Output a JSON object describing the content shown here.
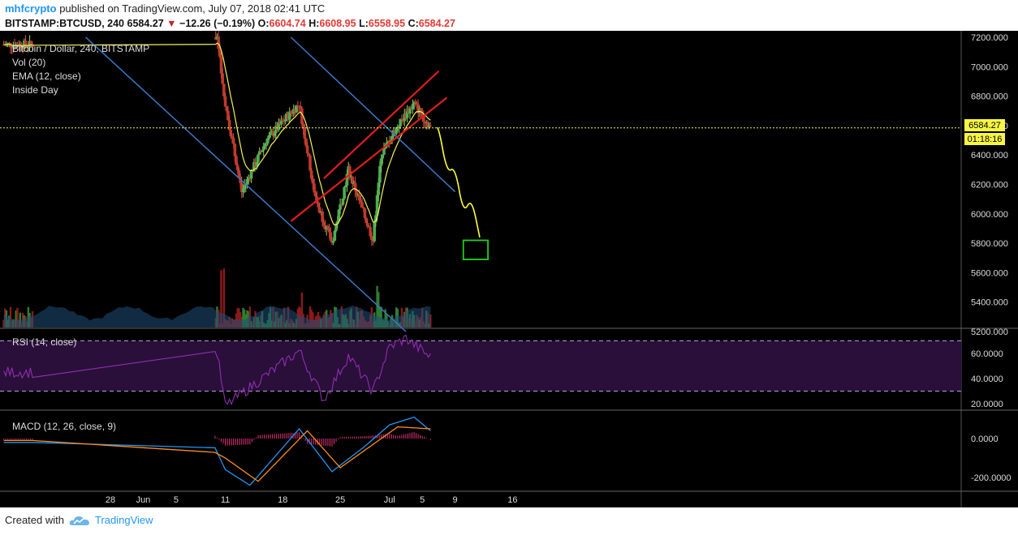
{
  "header": {
    "author": "mhfcrypto",
    "published_text": "published on TradingView.com, July 07, 2018 02:41 UTC",
    "symbol": "BITSTAMP:BTCUSD, 240",
    "last": "6584.27",
    "change": "−12.26 (−0.19%)",
    "o_label": "O:",
    "o_val": "6604.74",
    "h_label": "H:",
    "h_val": "6608.95",
    "l_label": "L:",
    "l_val": "6558.95",
    "c_label": "C:",
    "c_val": "6584.27"
  },
  "legend": {
    "title": "Bitcoin / Dollar, 240, BITSTAMP",
    "vol": "Vol (20)",
    "ema": "EMA (12, close)",
    "inside": "Inside Day",
    "rsi": "RSI (14, close)",
    "macd": "MACD (12, 26, close, 9)"
  },
  "price_tag": {
    "price": "6584.27",
    "countdown": "01:18:16"
  },
  "footer": {
    "created_with": "Created with",
    "brand": "TradingView"
  },
  "colors": {
    "up": "#4caf50",
    "down": "#c0392b",
    "trend": "#e01d1d",
    "channel": "#3a78c8",
    "ema": "#f3f35a",
    "projection": "#ffff33",
    "target": "#1fd11f",
    "rsi": "#8e2fb0",
    "macd": "#2196f3",
    "signal": "#ff8c1a",
    "hist": "#e5327a"
  },
  "chart_data": [
    {
      "type": "candlestick",
      "title": "Bitcoin / Dollar, 240, BITSTAMP",
      "ylim": [
        5150,
        7250
      ],
      "y_ticks": [
        "7200.000",
        "7000.000",
        "6800.000",
        "6600.000",
        "6400.000",
        "6200.000",
        "6000.000",
        "5800.000",
        "5600.000",
        "5400.000",
        "5200.000"
      ],
      "x_ticks": [
        "28",
        "Jun",
        "5",
        "11",
        "18",
        "25",
        "Jul",
        "5",
        "9",
        "16"
      ],
      "last_price": 6584.27,
      "key_points": [
        {
          "x": "May 28",
          "y": 7150
        },
        {
          "x": "Jun 10",
          "y": 7200
        },
        {
          "x": "Jun 11",
          "y": 6750
        },
        {
          "x": "Jun 13",
          "y": 6150
        },
        {
          "x": "Jun 16",
          "y": 6500
        },
        {
          "x": "Jun 20",
          "y": 6750
        },
        {
          "x": "Jun 22",
          "y": 6100
        },
        {
          "x": "Jun 24",
          "y": 5800
        },
        {
          "x": "Jun 26",
          "y": 6300
        },
        {
          "x": "Jun 29",
          "y": 5820
        },
        {
          "x": "Jun 30",
          "y": 6400
        },
        {
          "x": "Jul 2",
          "y": 6600
        },
        {
          "x": "Jul 4",
          "y": 6750
        },
        {
          "x": "Jul 6",
          "y": 6584
        }
      ],
      "projection": [
        {
          "x": "Jul 7",
          "y": 6590
        },
        {
          "x": "Jul 8",
          "y": 6280
        },
        {
          "x": "Jul 9",
          "y": 6320
        },
        {
          "x": "Jul 10",
          "y": 6000
        },
        {
          "x": "Jul 11",
          "y": 6110
        },
        {
          "x": "Jul 12",
          "y": 5840
        }
      ],
      "target_zone": {
        "x": [
          "Jul 10",
          "Jul 13"
        ],
        "y": [
          5690,
          5820
        ]
      },
      "rising_channel": {
        "lower": [
          [
            "Jun 19",
            5950
          ],
          [
            "Jul 8",
            6790
          ]
        ],
        "upper": [
          [
            "Jun 23",
            6240
          ],
          [
            "Jul 7",
            6970
          ]
        ]
      },
      "falling_channel": {
        "upper": [
          [
            "Jun 19",
            7200
          ],
          [
            "Jul 9",
            6150
          ]
        ],
        "lower": [
          [
            "May 25",
            7200
          ],
          [
            "Jul 3",
            5200
          ]
        ]
      }
    },
    {
      "type": "line",
      "title": "RSI (14, close)",
      "ylim": [
        12,
        75
      ],
      "y_ticks": [
        "60.0000",
        "40.0000",
        "20.0000"
      ],
      "bands": [
        30,
        70
      ],
      "key_points": [
        {
          "x": "May 25",
          "y": 45
        },
        {
          "x": "May 28",
          "y": 58
        },
        {
          "x": "Jun 3",
          "y": 62
        },
        {
          "x": "Jun 10",
          "y": 60
        },
        {
          "x": "Jun 11",
          "y": 18
        },
        {
          "x": "Jun 14",
          "y": 33
        },
        {
          "x": "Jun 20",
          "y": 62
        },
        {
          "x": "Jun 23",
          "y": 23
        },
        {
          "x": "Jun 26",
          "y": 58
        },
        {
          "x": "Jun 29",
          "y": 30
        },
        {
          "x": "Jul 1",
          "y": 65
        },
        {
          "x": "Jul 3",
          "y": 72
        },
        {
          "x": "Jul 6",
          "y": 57
        }
      ]
    },
    {
      "type": "line",
      "title": "MACD (12, 26, close, 9)",
      "ylim": [
        -260,
        140
      ],
      "y_ticks": [
        "0.0000",
        "-200.0000"
      ],
      "series": [
        {
          "name": "MACD",
          "key_points": [
            {
              "x": "May 25",
              "y": -20
            },
            {
              "x": "May 29",
              "y": -200
            },
            {
              "x": "Jun 1",
              "y": -140
            },
            {
              "x": "Jun 4",
              "y": 80
            },
            {
              "x": "Jun 9",
              "y": 20
            },
            {
              "x": "Jun 11",
              "y": -160
            },
            {
              "x": "Jun 14",
              "y": -240
            },
            {
              "x": "Jun 20",
              "y": 50
            },
            {
              "x": "Jun 24",
              "y": -170
            },
            {
              "x": "Jun 28",
              "y": -40
            },
            {
              "x": "Jul 1",
              "y": 70
            },
            {
              "x": "Jul 4",
              "y": 110
            },
            {
              "x": "Jul 6",
              "y": 40
            }
          ]
        },
        {
          "name": "Signal",
          "key_points": [
            {
              "x": "May 25",
              "y": -10
            },
            {
              "x": "May 30",
              "y": -180
            },
            {
              "x": "Jun 4",
              "y": 60
            },
            {
              "x": "Jun 11",
              "y": -100
            },
            {
              "x": "Jun 15",
              "y": -220
            },
            {
              "x": "Jun 21",
              "y": 40
            },
            {
              "x": "Jun 25",
              "y": -150
            },
            {
              "x": "Jul 2",
              "y": 60
            },
            {
              "x": "Jul 6",
              "y": 50
            }
          ]
        }
      ]
    }
  ]
}
